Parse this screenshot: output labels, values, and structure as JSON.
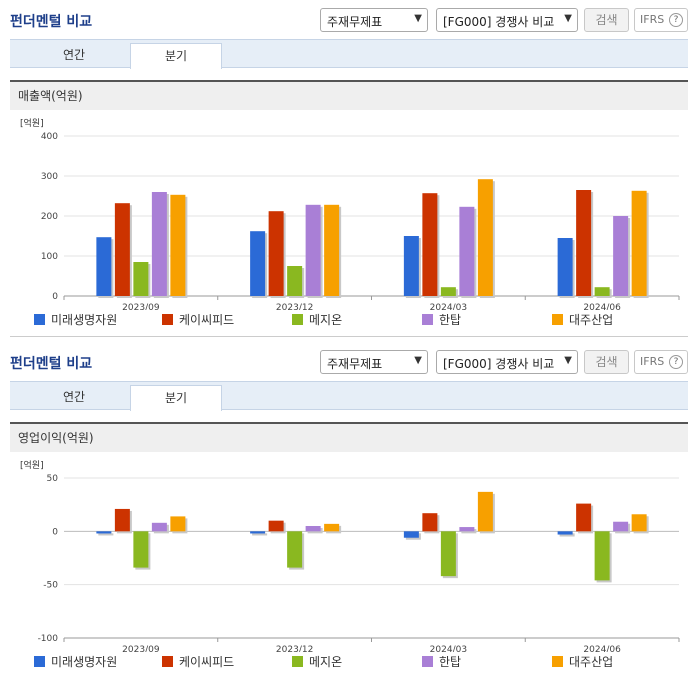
{
  "header": {
    "title": "펀더멘털 비교",
    "statement_select": "주재무제표",
    "compare_select": "[FG000] 경쟁사 비교",
    "search_label": "검색",
    "ifrs_label": "IFRS",
    "help_label": "?"
  },
  "tabs": [
    "연간",
    "분기"
  ],
  "sections": [
    "매출액(억원)",
    "영업이익(억원)"
  ],
  "legend": [
    "미래생명자원",
    "케이씨피드",
    "메지온",
    "한탑",
    "대주산업"
  ],
  "colors": [
    "#2b6ad6",
    "#cc3300",
    "#8ab820",
    "#a97fd6",
    "#f7a000"
  ],
  "chart_data": [
    {
      "type": "bar",
      "unit_label": "[억원]",
      "categories": [
        "2023/09",
        "2023/12",
        "2024/03",
        "2024/06"
      ],
      "ylim": [
        0,
        400
      ],
      "yticks": [
        0,
        100,
        200,
        300,
        400
      ],
      "series": [
        {
          "name": "미래생명자원",
          "values": [
            147,
            162,
            150,
            145
          ]
        },
        {
          "name": "케이씨피드",
          "values": [
            232,
            212,
            257,
            265
          ]
        },
        {
          "name": "메지온",
          "values": [
            85,
            75,
            22,
            22
          ]
        },
        {
          "name": "한탑",
          "values": [
            260,
            228,
            223,
            200
          ]
        },
        {
          "name": "대주산업",
          "values": [
            253,
            228,
            292,
            263
          ]
        }
      ]
    },
    {
      "type": "bar",
      "unit_label": "[억원]",
      "categories": [
        "2023/09",
        "2023/12",
        "2024/03",
        "2024/06"
      ],
      "ylim": [
        -100,
        50
      ],
      "yticks": [
        -100,
        -50,
        0,
        50
      ],
      "series": [
        {
          "name": "미래생명자원",
          "values": [
            -2,
            -2,
            -6,
            -3
          ]
        },
        {
          "name": "케이씨피드",
          "values": [
            21,
            10,
            17,
            26
          ]
        },
        {
          "name": "메지온",
          "values": [
            -34,
            -34,
            -42,
            -46
          ]
        },
        {
          "name": "한탑",
          "values": [
            8,
            5,
            4,
            9
          ]
        },
        {
          "name": "대주산업",
          "values": [
            14,
            7,
            37,
            16
          ]
        }
      ]
    }
  ]
}
